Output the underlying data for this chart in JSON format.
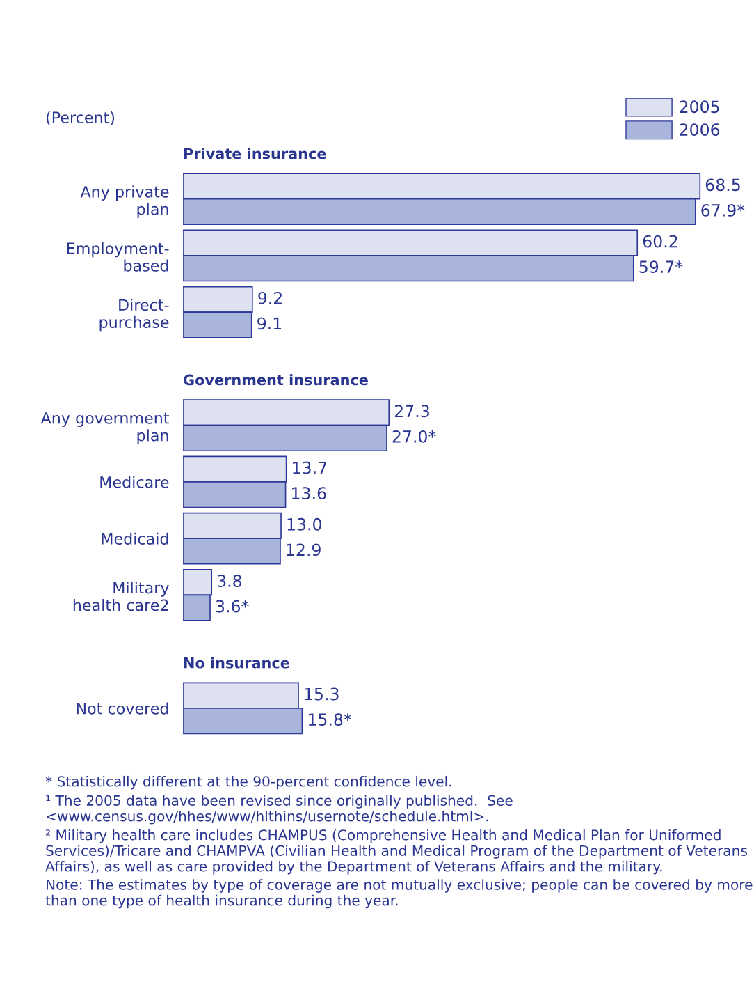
{
  "chart_data": {
    "type": "bar",
    "orientation": "horizontal",
    "xlabel": "(Percent)",
    "categories": [
      "Any private\nplan",
      "Employment-\nbased",
      "Direct-\npurchase",
      "Any government\nplan",
      "Medicare",
      "Medicaid",
      "Military\nhealth care2",
      "Not covered"
    ],
    "series": [
      {
        "name": "2005",
        "color": "#dde1f0",
        "values": [
          68.5,
          60.2,
          9.2,
          27.3,
          13.7,
          13.0,
          3.8,
          15.3
        ],
        "value_labels": [
          "68.5",
          "60.2",
          "9.2",
          "27.3",
          "13.7",
          "13.0",
          "3.8",
          "15.3"
        ]
      },
      {
        "name": "2006",
        "color": "#aab5dc",
        "values": [
          67.9,
          59.7,
          9.1,
          27.0,
          13.6,
          12.9,
          3.6,
          15.8
        ],
        "value_labels": [
          "67.9*",
          "59.7*",
          "9.1",
          "27.0*",
          "13.6",
          "12.9",
          "3.6*",
          "15.8*"
        ]
      }
    ],
    "annotations": [
      {
        "text": "Private insurance",
        "y": "Any private\nplan"
      },
      {
        "text": "Government insurance",
        "y": "Any government\nplan"
      },
      {
        "text": "No insurance",
        "y": "Not covered"
      },
      "* Statistically different at the 90-percent confidence level.",
      "¹ The 2005 data have been revised since originally published.  See <www.census.gov/hhes/www/hlthins/usernote/schedule.html>.",
      "² Military health care includes CHAMPUS (Comprehensive Health and Medical Plan for Uniformed Services)/Tricare and CHAMPVA (Civilian Health and Medical Program of the Department of Veterans Affairs), as well as care provided by the Department of Veterans Affairs and the military.",
      "Note: The estimates by type of coverage are not mutually exclusive; people can be covered by more than one type of health insurance during the year."
    ],
    "legend": "top right",
    "grid": false,
    "tick_labels": "y"
  }
}
